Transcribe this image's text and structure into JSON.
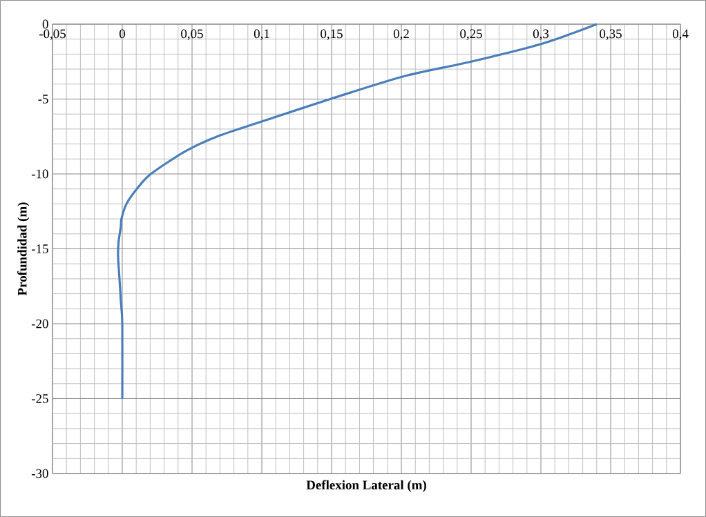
{
  "chart_data": {
    "type": "line",
    "xlabel": "Deflexion Lateral (m)",
    "ylabel": "Profundidad (m)",
    "x": [
      0.34,
      0.301,
      0.25,
      0.201,
      0.149,
      0.1,
      0.068,
      0.045,
      0.0205,
      0.0104,
      0.003,
      -0.0006,
      -0.001,
      -0.0026,
      -0.003,
      -0.002,
      -0.001,
      0,
      0
    ],
    "series": [
      {
        "color": "#4a7ebb",
        "values": [
          0,
          -1.3,
          -2.5,
          -3.5,
          -5,
          -6.5,
          -7.5,
          -8.5,
          -10,
          -11,
          -12,
          -13,
          -13.5,
          -14.5,
          -15.5,
          -17,
          -18.5,
          -20,
          -25
        ]
      }
    ],
    "xlim": [
      -0.05,
      0.4
    ],
    "ylim": [
      -30,
      0
    ],
    "xticks": [
      {
        "value": -0.05,
        "label": "-0,05"
      },
      0,
      {
        "value": 0.05,
        "label": "0,05"
      },
      {
        "value": 0.1,
        "label": "0,1"
      },
      {
        "value": 0.15,
        "label": "0,15"
      },
      {
        "value": 0.2,
        "label": "0,2"
      },
      {
        "value": 0.25,
        "label": "0,25"
      },
      {
        "value": 0.3,
        "label": "0,3"
      },
      {
        "value": 0.35,
        "label": "0,35"
      },
      {
        "value": 0.4,
        "label": "0,4"
      }
    ],
    "yticks": [
      -30,
      -25,
      -20,
      -15,
      -10,
      -5,
      0
    ],
    "grid": true,
    "marker": "none",
    "line_style": "solid"
  }
}
